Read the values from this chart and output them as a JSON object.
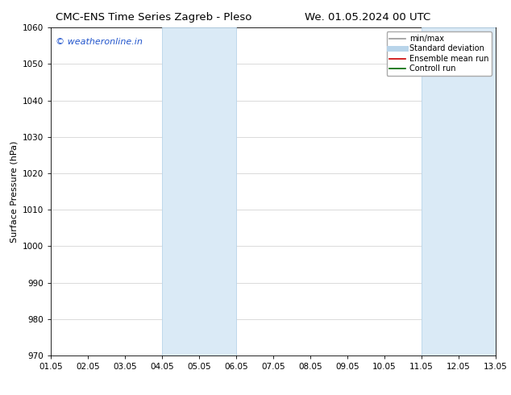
{
  "title_left": "CMC-ENS Time Series Zagreb - Pleso",
  "title_right": "We. 01.05.2024 00 UTC",
  "ylabel": "Surface Pressure (hPa)",
  "ylim": [
    970,
    1060
  ],
  "yticks": [
    970,
    980,
    990,
    1000,
    1010,
    1020,
    1030,
    1040,
    1050,
    1060
  ],
  "xlim_start": 0,
  "xlim_end": 12,
  "xtick_labels": [
    "01.05",
    "02.05",
    "03.05",
    "04.05",
    "05.05",
    "06.05",
    "07.05",
    "08.05",
    "09.05",
    "10.05",
    "11.05",
    "12.05",
    "13.05"
  ],
  "shaded_bands": [
    {
      "x_start": 3,
      "x_end": 5
    },
    {
      "x_start": 10,
      "x_end": 12
    }
  ],
  "shaded_color": "#daeaf6",
  "band_edge_color": "#b8d4ea",
  "watermark_text": "© weatheronline.in",
  "watermark_color": "#2255cc",
  "legend_items": [
    {
      "label": "min/max",
      "color": "#999999",
      "lw": 1.2,
      "style": "solid"
    },
    {
      "label": "Standard deviation",
      "color": "#b8d4ea",
      "lw": 5,
      "style": "solid"
    },
    {
      "label": "Ensemble mean run",
      "color": "#cc0000",
      "lw": 1.2,
      "style": "solid"
    },
    {
      "label": "Controll run",
      "color": "#006600",
      "lw": 1.2,
      "style": "solid"
    }
  ],
  "bg_color": "#ffffff",
  "grid_color": "#cccccc",
  "title_fontsize": 9.5,
  "tick_fontsize": 7.5,
  "ylabel_fontsize": 8,
  "watermark_fontsize": 8,
  "legend_fontsize": 7
}
